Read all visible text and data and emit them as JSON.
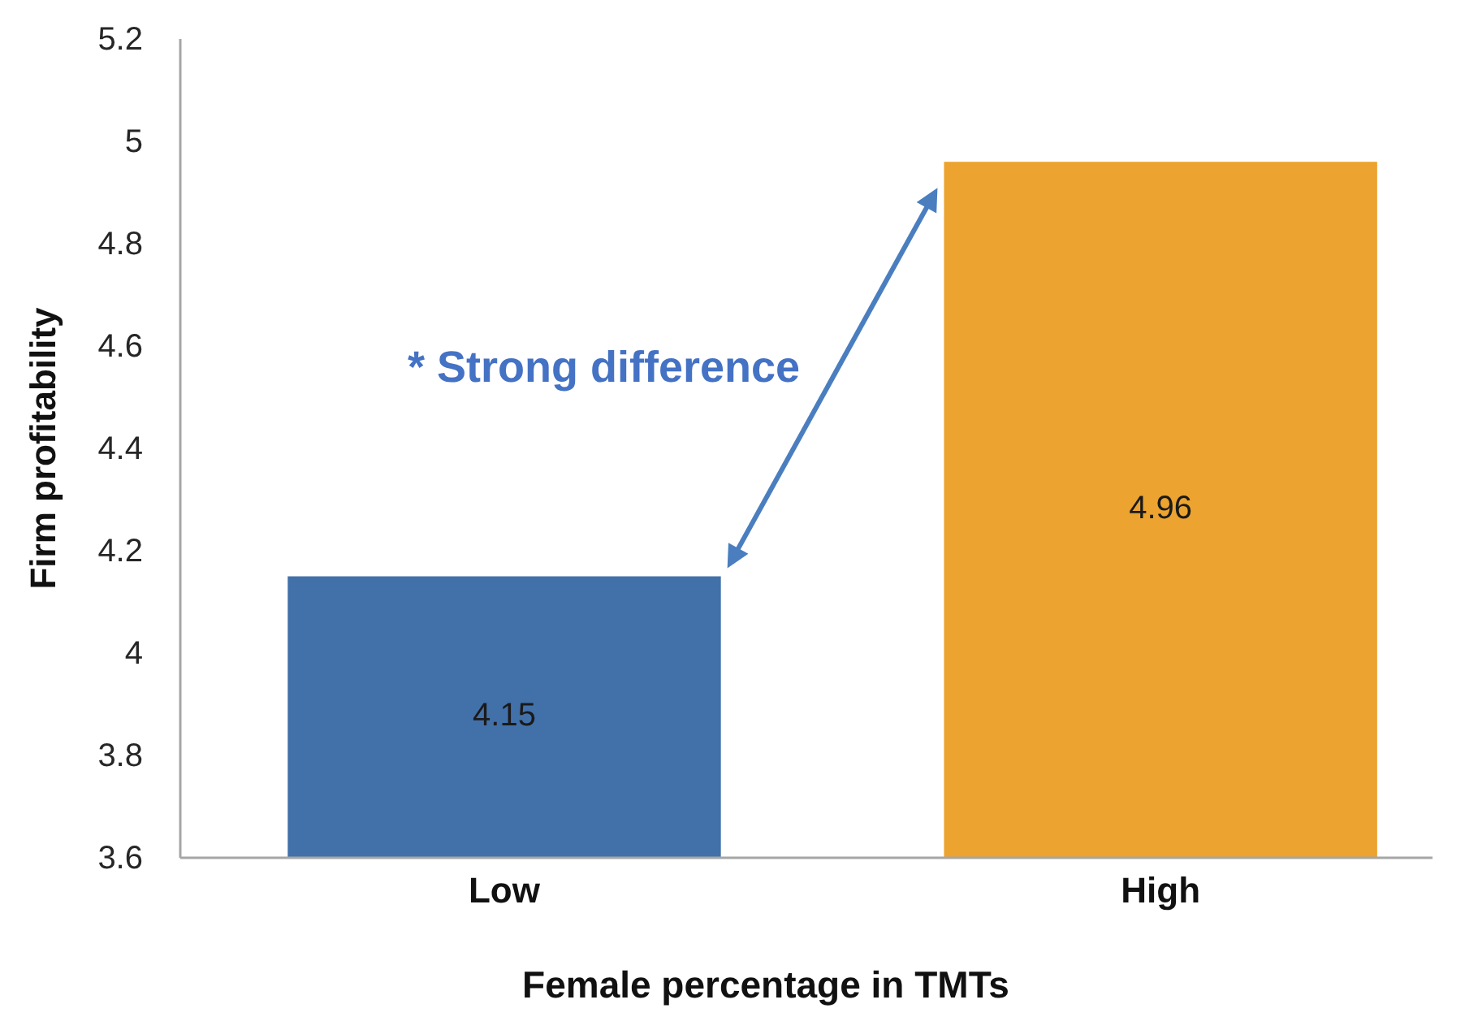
{
  "chart_data": {
    "type": "bar",
    "categories": [
      "Low",
      "High"
    ],
    "values": [
      4.15,
      4.96
    ],
    "colors": [
      "#4271aa",
      "#eca32f"
    ],
    "xlabel": "Female percentage in TMTs",
    "ylabel": "Firm profitability",
    "ylim": [
      3.6,
      5.2
    ],
    "yticks": [
      3.6,
      3.8,
      4,
      4.2,
      4.4,
      4.6,
      4.8,
      5,
      5.2
    ],
    "data_labels": true,
    "annotations": [
      "* Strong difference"
    ]
  }
}
